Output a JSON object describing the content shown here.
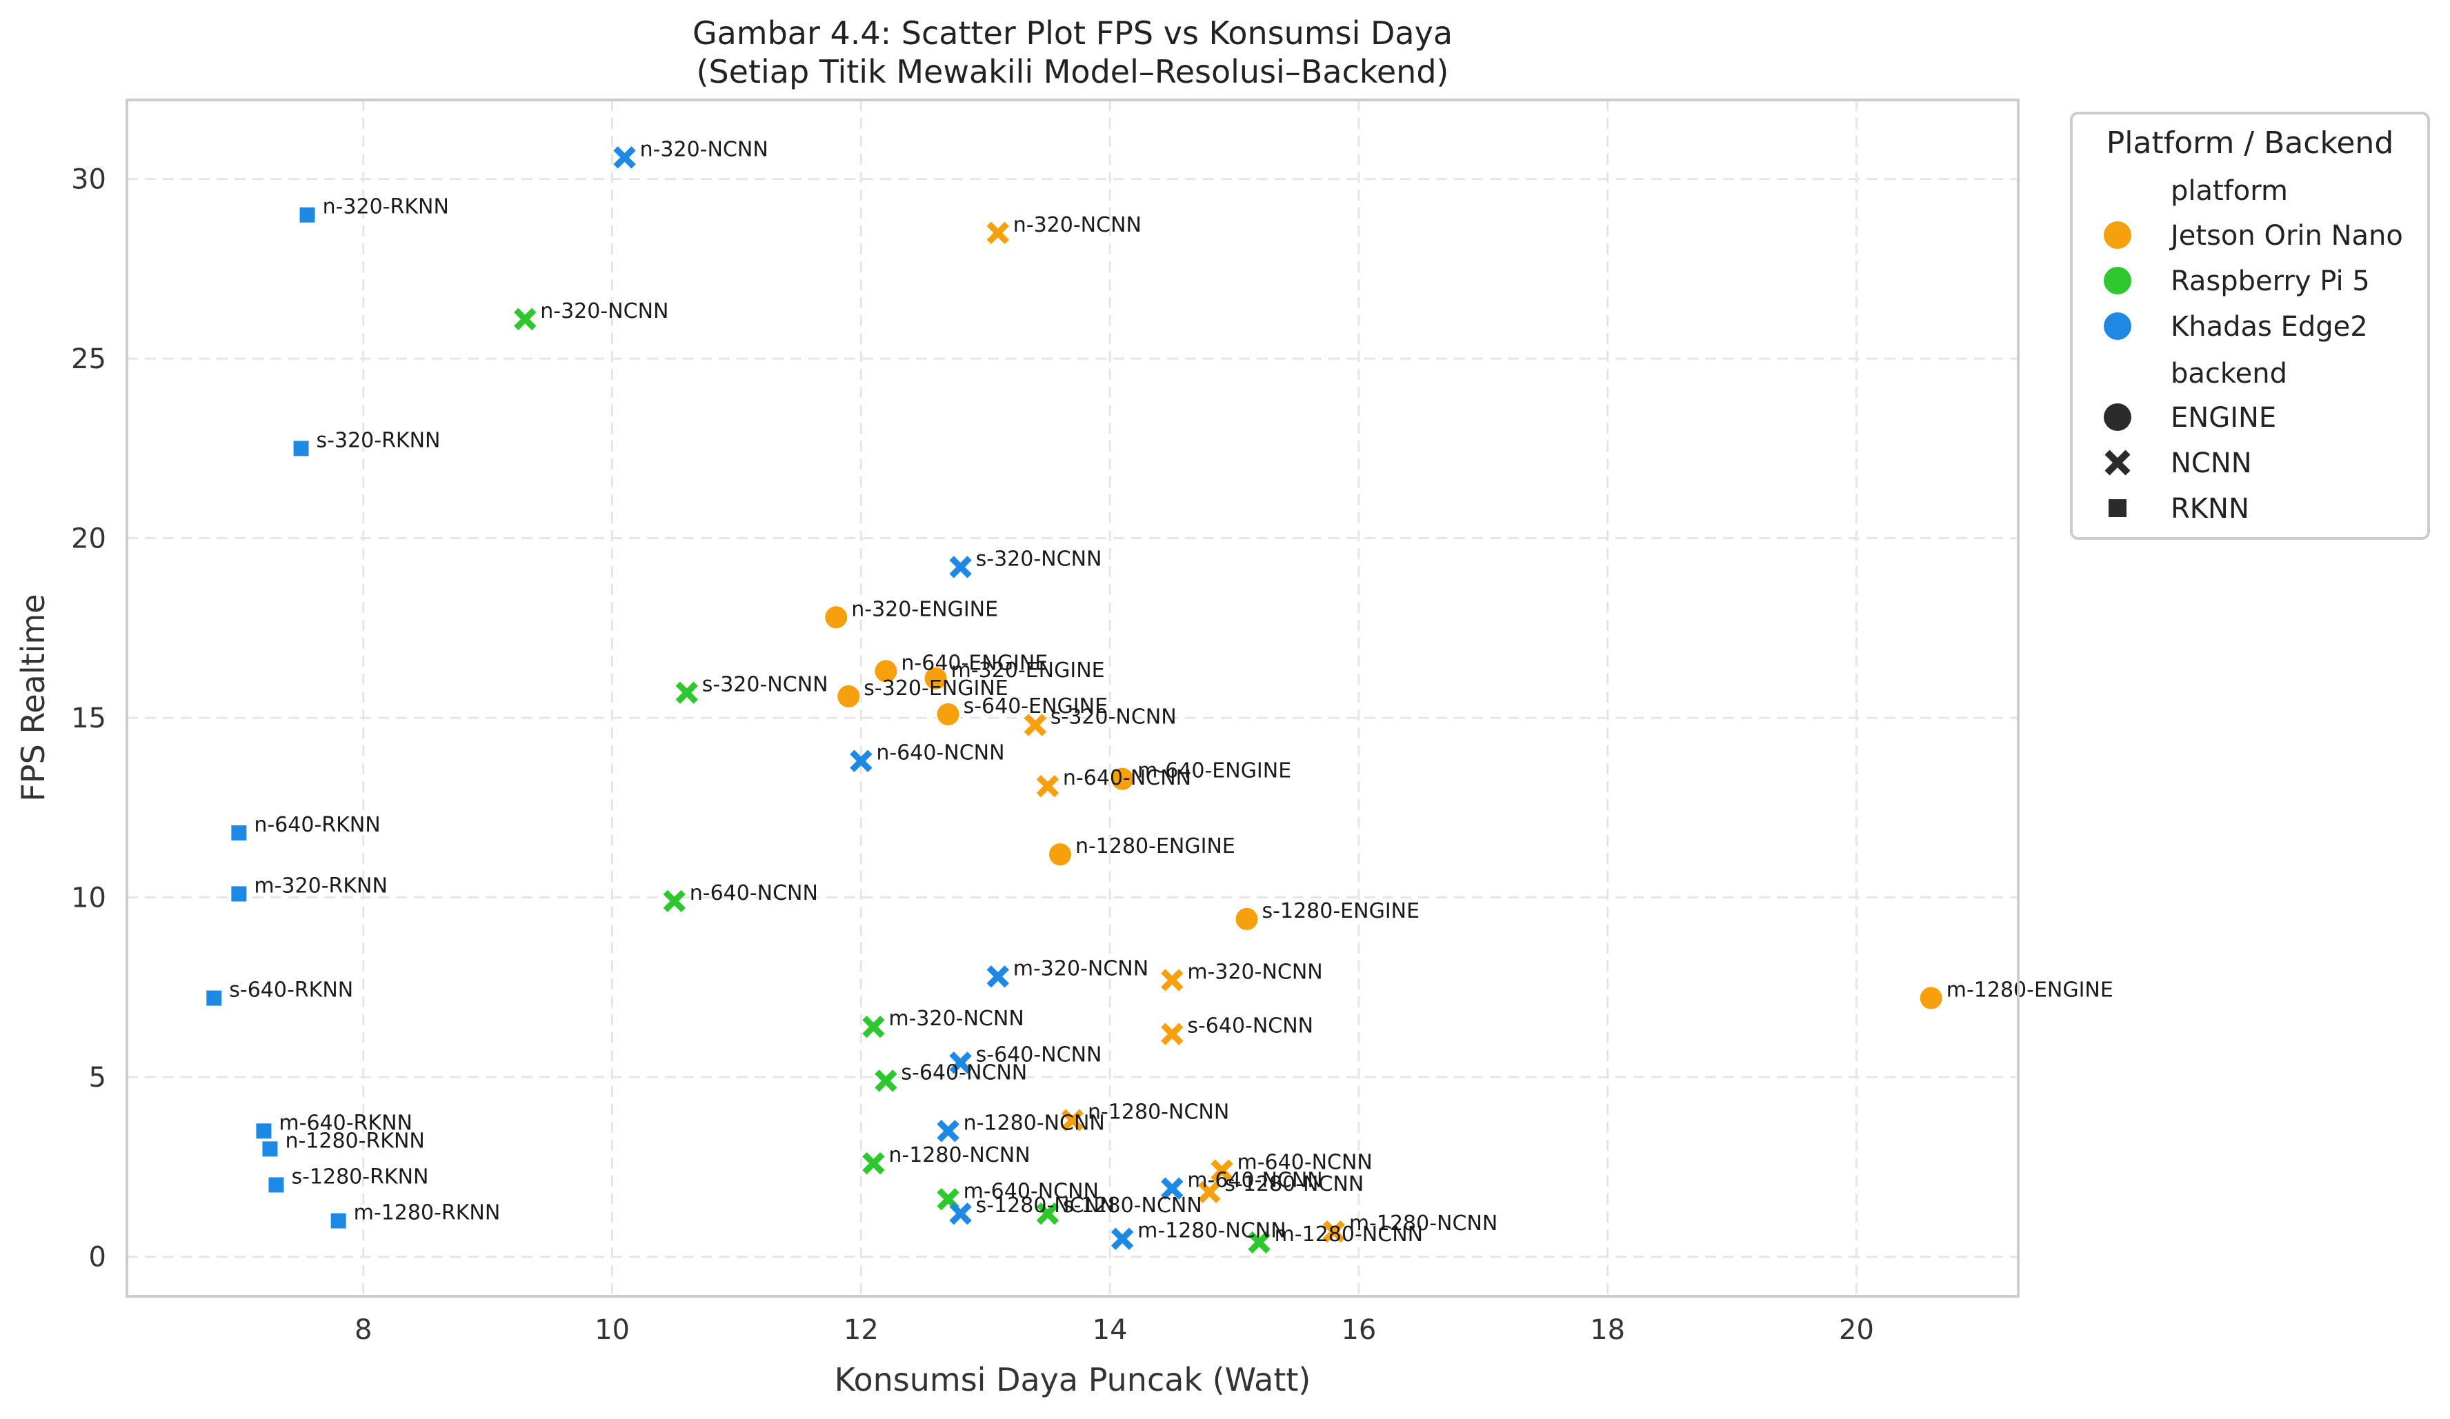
{
  "chart_data": {
    "type": "scatter",
    "title": "Gambar 4.4: Scatter Plot FPS vs Konsumsi Daya",
    "subtitle": "(Setiap Titik Mewakili Model–Resolusi–Backend)",
    "xlabel": "Konsumsi Daya Puncak (Watt)",
    "ylabel": "FPS Realtime",
    "xlim": [
      6.1,
      21.3
    ],
    "ylim": [
      -1.1,
      32.2
    ],
    "xticks": [
      8,
      10,
      12,
      14,
      16,
      18,
      20
    ],
    "yticks": [
      0,
      5,
      10,
      15,
      20,
      25,
      30
    ],
    "grid": true,
    "legend": {
      "title": "Platform / Backend",
      "placement": "outside-top-right",
      "platform_heading": "platform",
      "backend_heading": "backend",
      "platforms": [
        {
          "name": "Jetson Orin Nano",
          "color": "#f5a00c"
        },
        {
          "name": "Raspberry Pi 5",
          "color": "#2ec82e"
        },
        {
          "name": "Khadas Edge2",
          "color": "#1e88e5"
        }
      ],
      "backends": [
        {
          "name": "ENGINE",
          "marker": "circle"
        },
        {
          "name": "NCNN",
          "marker": "x"
        },
        {
          "name": "RKNN",
          "marker": "square"
        }
      ]
    },
    "points": [
      {
        "label": "n-320-NCNN",
        "platform": "Khadas Edge2",
        "backend": "NCNN",
        "x": 10.1,
        "y": 30.6
      },
      {
        "label": "n-320-RKNN",
        "platform": "Khadas Edge2",
        "backend": "RKNN",
        "x": 7.55,
        "y": 29.0
      },
      {
        "label": "n-320-NCNN",
        "platform": "Jetson Orin Nano",
        "backend": "NCNN",
        "x": 13.1,
        "y": 28.5
      },
      {
        "label": "n-320-NCNN",
        "platform": "Raspberry Pi 5",
        "backend": "NCNN",
        "x": 9.3,
        "y": 26.1
      },
      {
        "label": "s-320-RKNN",
        "platform": "Khadas Edge2",
        "backend": "RKNN",
        "x": 7.5,
        "y": 22.5
      },
      {
        "label": "s-320-NCNN",
        "platform": "Khadas Edge2",
        "backend": "NCNN",
        "x": 12.8,
        "y": 19.2
      },
      {
        "label": "n-320-ENGINE",
        "platform": "Jetson Orin Nano",
        "backend": "ENGINE",
        "x": 11.8,
        "y": 17.8
      },
      {
        "label": "n-640-ENGINE",
        "platform": "Jetson Orin Nano",
        "backend": "ENGINE",
        "x": 12.2,
        "y": 16.3
      },
      {
        "label": "m-320-ENGINE",
        "platform": "Jetson Orin Nano",
        "backend": "ENGINE",
        "x": 12.6,
        "y": 16.1
      },
      {
        "label": "s-320-NCNN",
        "platform": "Raspberry Pi 5",
        "backend": "NCNN",
        "x": 10.6,
        "y": 15.7
      },
      {
        "label": "s-320-ENGINE",
        "platform": "Jetson Orin Nano",
        "backend": "ENGINE",
        "x": 11.9,
        "y": 15.6
      },
      {
        "label": "s-640-ENGINE",
        "platform": "Jetson Orin Nano",
        "backend": "ENGINE",
        "x": 12.7,
        "y": 15.1
      },
      {
        "label": "s-320-NCNN",
        "platform": "Jetson Orin Nano",
        "backend": "NCNN",
        "x": 13.4,
        "y": 14.8
      },
      {
        "label": "n-640-NCNN",
        "platform": "Khadas Edge2",
        "backend": "NCNN",
        "x": 12.0,
        "y": 13.8
      },
      {
        "label": "n-640-NCNN",
        "platform": "Jetson Orin Nano",
        "backend": "NCNN",
        "x": 13.5,
        "y": 13.1
      },
      {
        "label": "m-640-ENGINE",
        "platform": "Jetson Orin Nano",
        "backend": "ENGINE",
        "x": 14.1,
        "y": 13.3
      },
      {
        "label": "n-640-RKNN",
        "platform": "Khadas Edge2",
        "backend": "RKNN",
        "x": 7.0,
        "y": 11.8
      },
      {
        "label": "n-1280-ENGINE",
        "platform": "Jetson Orin Nano",
        "backend": "ENGINE",
        "x": 13.6,
        "y": 11.2
      },
      {
        "label": "m-320-RKNN",
        "platform": "Khadas Edge2",
        "backend": "RKNN",
        "x": 7.0,
        "y": 10.1
      },
      {
        "label": "n-640-NCNN",
        "platform": "Raspberry Pi 5",
        "backend": "NCNN",
        "x": 10.5,
        "y": 9.9
      },
      {
        "label": "s-1280-ENGINE",
        "platform": "Jetson Orin Nano",
        "backend": "ENGINE",
        "x": 15.1,
        "y": 9.4
      },
      {
        "label": "m-320-NCNN",
        "platform": "Khadas Edge2",
        "backend": "NCNN",
        "x": 13.1,
        "y": 7.8
      },
      {
        "label": "m-320-NCNN",
        "platform": "Jetson Orin Nano",
        "backend": "NCNN",
        "x": 14.5,
        "y": 7.7
      },
      {
        "label": "m-1280-ENGINE",
        "platform": "Jetson Orin Nano",
        "backend": "ENGINE",
        "x": 20.6,
        "y": 7.2
      },
      {
        "label": "s-640-RKNN",
        "platform": "Khadas Edge2",
        "backend": "RKNN",
        "x": 6.8,
        "y": 7.2
      },
      {
        "label": "m-320-NCNN",
        "platform": "Raspberry Pi 5",
        "backend": "NCNN",
        "x": 12.1,
        "y": 6.4
      },
      {
        "label": "s-640-NCNN",
        "platform": "Jetson Orin Nano",
        "backend": "NCNN",
        "x": 14.5,
        "y": 6.2
      },
      {
        "label": "s-640-NCNN",
        "platform": "Khadas Edge2",
        "backend": "NCNN",
        "x": 12.8,
        "y": 5.4
      },
      {
        "label": "s-640-NCNN",
        "platform": "Raspberry Pi 5",
        "backend": "NCNN",
        "x": 12.2,
        "y": 4.9
      },
      {
        "label": "n-1280-NCNN",
        "platform": "Jetson Orin Nano",
        "backend": "NCNN",
        "x": 13.7,
        "y": 3.8
      },
      {
        "label": "m-640-RKNN",
        "platform": "Khadas Edge2",
        "backend": "RKNN",
        "x": 7.2,
        "y": 3.5
      },
      {
        "label": "n-1280-NCNN",
        "platform": "Khadas Edge2",
        "backend": "NCNN",
        "x": 12.7,
        "y": 3.5
      },
      {
        "label": "n-1280-RKNN",
        "platform": "Khadas Edge2",
        "backend": "RKNN",
        "x": 7.25,
        "y": 3.0
      },
      {
        "label": "n-1280-NCNN",
        "platform": "Raspberry Pi 5",
        "backend": "NCNN",
        "x": 12.1,
        "y": 2.6
      },
      {
        "label": "m-640-NCNN",
        "platform": "Jetson Orin Nano",
        "backend": "NCNN",
        "x": 14.9,
        "y": 2.4
      },
      {
        "label": "s-1280-RKNN",
        "platform": "Khadas Edge2",
        "backend": "RKNN",
        "x": 7.3,
        "y": 2.0
      },
      {
        "label": "m-640-NCNN",
        "platform": "Khadas Edge2",
        "backend": "NCNN",
        "x": 14.5,
        "y": 1.9
      },
      {
        "label": "s-1280-NCNN",
        "platform": "Jetson Orin Nano",
        "backend": "NCNN",
        "x": 14.8,
        "y": 1.8
      },
      {
        "label": "m-640-NCNN",
        "platform": "Raspberry Pi 5",
        "backend": "NCNN",
        "x": 12.7,
        "y": 1.6
      },
      {
        "label": "s-1280-NCNN",
        "platform": "Khadas Edge2",
        "backend": "NCNN",
        "x": 12.8,
        "y": 1.2
      },
      {
        "label": "s-1280-NCNN",
        "platform": "Raspberry Pi 5",
        "backend": "NCNN",
        "x": 13.5,
        "y": 1.2
      },
      {
        "label": "m-1280-RKNN",
        "platform": "Khadas Edge2",
        "backend": "RKNN",
        "x": 7.8,
        "y": 1.0
      },
      {
        "label": "m-1280-NCNN",
        "platform": "Jetson Orin Nano",
        "backend": "NCNN",
        "x": 15.8,
        "y": 0.7
      },
      {
        "label": "m-1280-NCNN",
        "platform": "Khadas Edge2",
        "backend": "NCNN",
        "x": 14.1,
        "y": 0.5
      },
      {
        "label": "m-1280-NCNN",
        "platform": "Raspberry Pi 5",
        "backend": "NCNN",
        "x": 15.2,
        "y": 0.4
      }
    ]
  }
}
